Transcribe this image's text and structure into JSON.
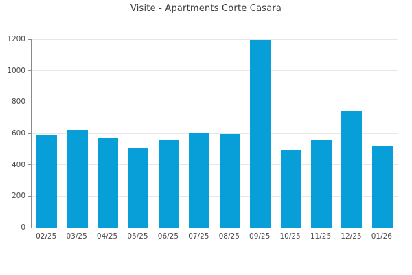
{
  "chart_data": {
    "type": "bar",
    "title": "Visite - Apartments Corte Casara",
    "categories": [
      "02/25",
      "03/25",
      "04/25",
      "05/25",
      "06/25",
      "07/25",
      "08/25",
      "09/25",
      "10/25",
      "11/25",
      "12/25",
      "01/26"
    ],
    "values": [
      590,
      620,
      570,
      510,
      555,
      600,
      595,
      1195,
      495,
      555,
      740,
      520
    ],
    "xlabel": "",
    "ylabel": "",
    "ylim": [
      0,
      1200
    ],
    "yticks": [
      0,
      200,
      400,
      600,
      800,
      1000,
      1200
    ],
    "grid": true,
    "legend_position": "none",
    "colors": {
      "bar": "#089ED8",
      "grid": "#e7e7e7",
      "y_axis": "#8a8a8a",
      "x_axis": "#555555",
      "title_text": "#3a3a3a",
      "tick_text": "#4a4a4a",
      "background": "#ffffff"
    }
  }
}
